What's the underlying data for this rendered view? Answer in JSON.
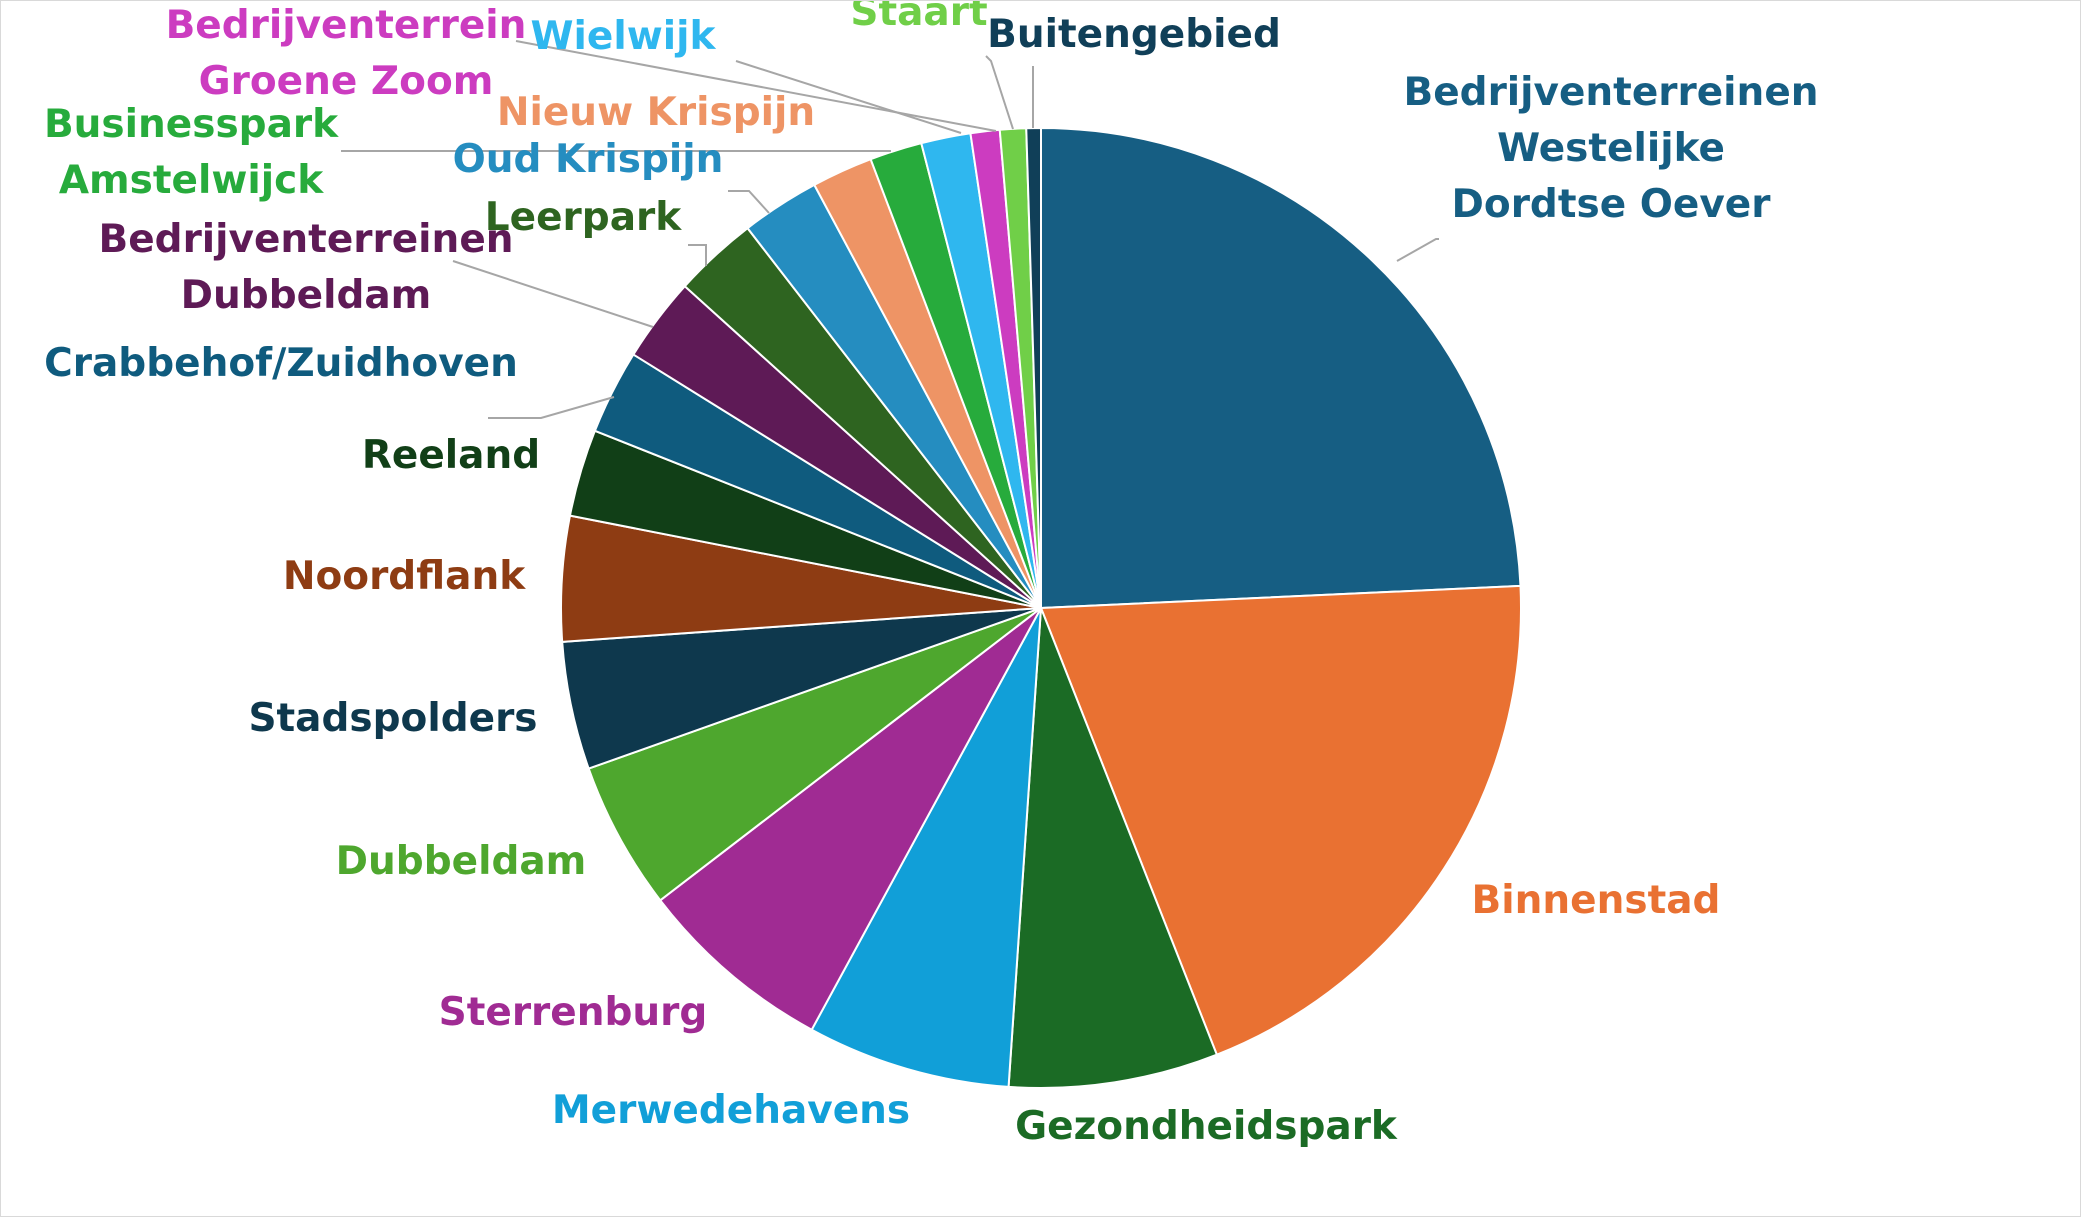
{
  "chart_data": {
    "type": "pie",
    "title": "",
    "start_angle_deg": 0,
    "direction": "clockwise",
    "legend": "none",
    "slices": [
      {
        "label": "Bedrijventerreinen Westelijke Dordtse Oever",
        "label_lines": [
          "Bedrijventerreinen",
          "Westelijke",
          "Dordtse Oever"
        ],
        "value": 24.8,
        "color": "#165e83",
        "label_color": "#165e83"
      },
      {
        "label": "Binnenstad",
        "label_lines": [
          "Binnenstad"
        ],
        "value": 20.2,
        "color": "#e97132",
        "label_color": "#e97132"
      },
      {
        "label": "Gezondheidspark",
        "label_lines": [
          "Gezondheidspark"
        ],
        "value": 7.2,
        "color": "#1b6b25",
        "label_color": "#1b6b25"
      },
      {
        "label": "Merwedehavens",
        "label_lines": [
          "Merwedehavens"
        ],
        "value": 7.0,
        "color": "#119fd8",
        "label_color": "#119fd8"
      },
      {
        "label": "Sterrenburg",
        "label_lines": [
          "Sterrenburg"
        ],
        "value": 6.8,
        "color": "#a02b93",
        "label_color": "#a02b93"
      },
      {
        "label": "Dubbeldam",
        "label_lines": [
          "Dubbeldam"
        ],
        "value": 5.1,
        "color": "#4ea72e",
        "label_color": "#4ea72e"
      },
      {
        "label": "Stadspolders",
        "label_lines": [
          "Stadspolders"
        ],
        "value": 4.4,
        "color": "#0e384d",
        "label_color": "#0e384d"
      },
      {
        "label": "Noordflank",
        "label_lines": [
          "Noordflank"
        ],
        "value": 4.3,
        "color": "#8e3c13",
        "label_color": "#8e3c13"
      },
      {
        "label": "Reeland",
        "label_lines": [
          "Reeland"
        ],
        "value": 3.0,
        "color": "#113f17",
        "label_color": "#113f17"
      },
      {
        "label": "Crabbehof/Zuidhoven",
        "label_lines": [
          "Crabbehof/Zuidhoven"
        ],
        "value": 2.9,
        "color": "#0f5b7e",
        "label_color": "#0f5b7e"
      },
      {
        "label": "Bedrijventerreinen Dubbeldam",
        "label_lines": [
          "Bedrijventerreinen",
          "Dubbeldam"
        ],
        "value": 2.9,
        "color": "#5e1a56",
        "label_color": "#5e1a56"
      },
      {
        "label": "Leerpark",
        "label_lines": [
          "Leerpark"
        ],
        "value": 2.9,
        "color": "#2e6420",
        "label_color": "#2e6420"
      },
      {
        "label": "Oud Krispijn",
        "label_lines": [
          "Oud Krispijn"
        ],
        "value": 2.7,
        "color": "#258dc0",
        "label_color": "#258dc0"
      },
      {
        "label": "Nieuw Krispijn",
        "label_lines": [
          "Nieuw Krispijn"
        ],
        "value": 2.1,
        "color": "#ee9465",
        "label_color": "#ee9465"
      },
      {
        "label": "Businesspark Amstelwijck",
        "label_lines": [
          "Businesspark",
          "Amstelwijck"
        ],
        "value": 1.8,
        "color": "#27ab3c",
        "label_color": "#27ab3c"
      },
      {
        "label": "Wielwijk",
        "label_lines": [
          "Wielwijk"
        ],
        "value": 1.7,
        "color": "#2fb7ef",
        "label_color": "#2fb7ef"
      },
      {
        "label": "Bedrijventerrein Groene Zoom",
        "label_lines": [
          "Bedrijventerrein",
          "Groene Zoom"
        ],
        "value": 1.0,
        "color": "#cc3cc0",
        "label_color": "#cc3cc0"
      },
      {
        "label": "Staart",
        "label_lines": [
          "Staart"
        ],
        "value": 0.9,
        "color": "#70cf48",
        "label_color": "#70cf48"
      },
      {
        "label": "Buitengebied",
        "label_lines": [
          "Buitengebied"
        ],
        "value": 0.5,
        "color": "#103f58",
        "label_color": "#103f58"
      }
    ]
  }
}
